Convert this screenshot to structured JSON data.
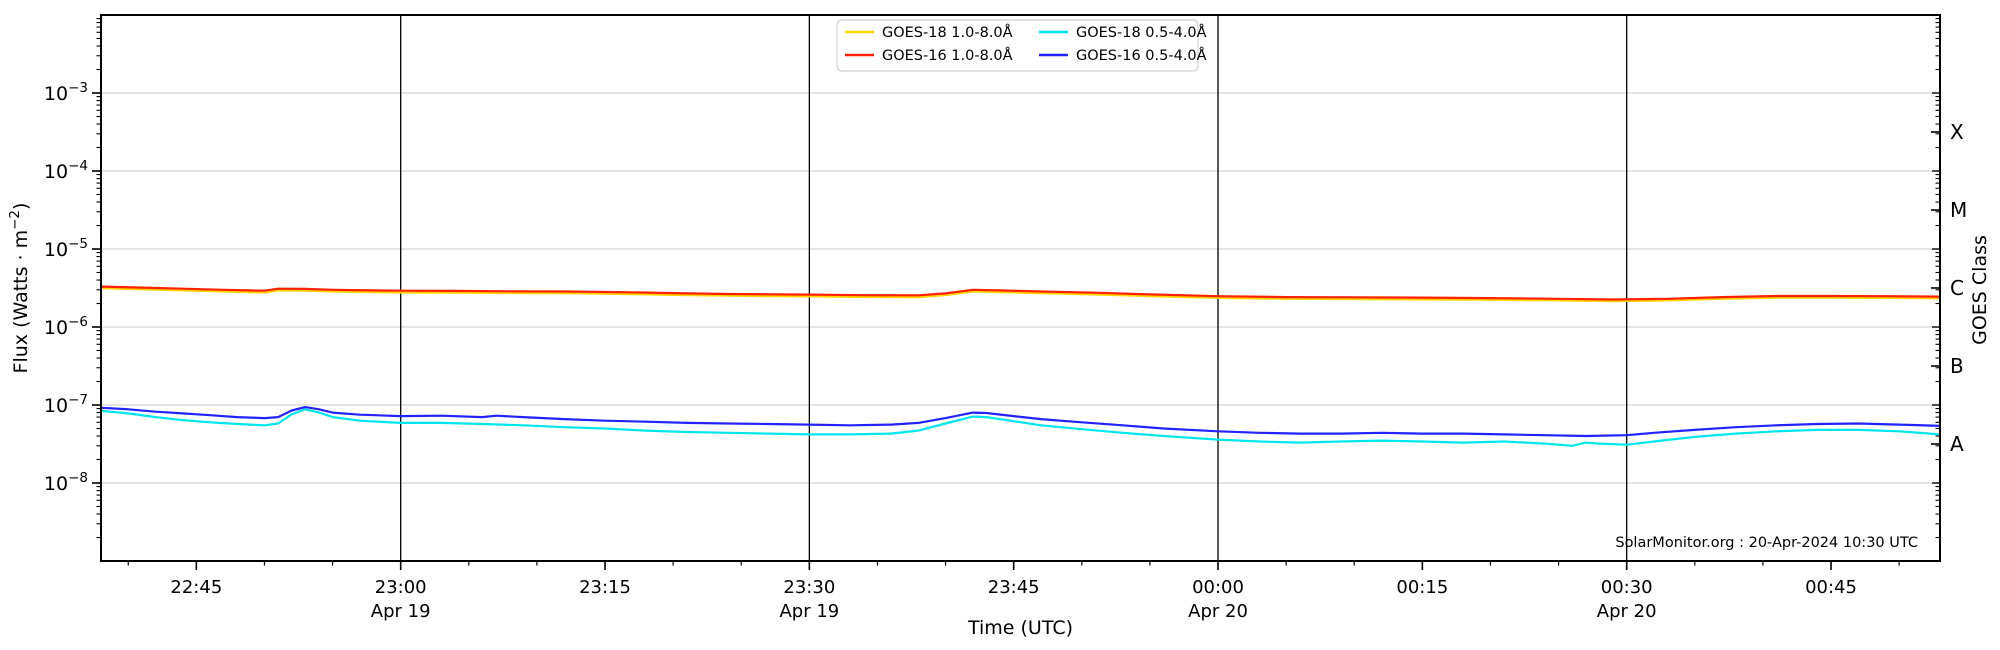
{
  "chart_data": {
    "type": "line",
    "title": "",
    "xlabel": "Time (UTC)",
    "ylabel_left": {
      "pre": "Flux (Watts · m",
      "sup": "−2",
      "post": ")"
    },
    "ylabel_right": "GOES Class",
    "y_axis": {
      "scale": "log",
      "min_exp": -9,
      "max_exp": -2,
      "labeled_exponents": [
        -3,
        -4,
        -5,
        -6,
        -7,
        -8
      ],
      "grid": "horizontal-decade-lines"
    },
    "goes_classes": [
      {
        "label": "X",
        "exp": -3.5
      },
      {
        "label": "M",
        "exp": -4.5
      },
      {
        "label": "C",
        "exp": -5.5
      },
      {
        "label": "B",
        "exp": -6.5
      },
      {
        "label": "A",
        "exp": -7.5
      }
    ],
    "x_axis": {
      "start_utc": "19-Apr-2024 22:38",
      "end_utc": "20-Apr-2024 00:53",
      "range_minutes": 135,
      "minor_tick_step_minutes": 5,
      "minor_tick_offset_minutes": 2,
      "major_ticks": [
        {
          "minute": 7,
          "label": "22:45"
        },
        {
          "minute": 22,
          "label": "23:00",
          "date": "Apr 19",
          "vline": true
        },
        {
          "minute": 37,
          "label": "23:15"
        },
        {
          "minute": 52,
          "label": "23:30",
          "date": "Apr 19",
          "vline": true
        },
        {
          "minute": 67,
          "label": "23:45"
        },
        {
          "minute": 82,
          "label": "00:00",
          "date": "Apr 20",
          "vline": true
        },
        {
          "minute": 97,
          "label": "00:15"
        },
        {
          "minute": 112,
          "label": "00:30",
          "date": "Apr 20",
          "vline": true
        },
        {
          "minute": 127,
          "label": "00:45"
        }
      ]
    },
    "legend": {
      "position": "top-center",
      "columns": 2,
      "entries": [
        {
          "label": "GOES-18 1.0-8.0Å",
          "color": "#ffd400"
        },
        {
          "label": "GOES-16 1.0-8.0Å",
          "color": "#ff2200"
        },
        {
          "label": "GOES-18 0.5-4.0Å",
          "color": "#00e5ee"
        },
        {
          "label": "GOES-16 0.5-4.0Å",
          "color": "#2222ff"
        }
      ]
    },
    "annotation": "SolarMonitor.org : 20-Apr-2024 10:30 UTC",
    "colors": {
      "background": "#ffffff",
      "axes": "#000000",
      "grid": "#c8c8c8",
      "vline": "#000000"
    },
    "series": [
      {
        "name": "GOES-18 1.0-8.0Å",
        "color": "#ffd400",
        "points": [
          [
            0,
            3.14e-06
          ],
          [
            3,
            3.04e-06
          ],
          [
            6,
            2.95e-06
          ],
          [
            9,
            2.85e-06
          ],
          [
            12,
            2.77e-06
          ],
          [
            13,
            2.95e-06
          ],
          [
            15,
            2.93e-06
          ],
          [
            17,
            2.85e-06
          ],
          [
            20,
            2.8e-06
          ],
          [
            22,
            2.77e-06
          ],
          [
            26,
            2.76e-06
          ],
          [
            30,
            2.73e-06
          ],
          [
            34,
            2.71e-06
          ],
          [
            38,
            2.66e-06
          ],
          [
            42,
            2.58e-06
          ],
          [
            46,
            2.52e-06
          ],
          [
            52,
            2.47e-06
          ],
          [
            56,
            2.43e-06
          ],
          [
            60,
            2.42e-06
          ],
          [
            62,
            2.57e-06
          ],
          [
            64,
            2.85e-06
          ],
          [
            66,
            2.8e-06
          ],
          [
            69,
            2.71e-06
          ],
          [
            73,
            2.61e-06
          ],
          [
            77,
            2.49e-06
          ],
          [
            82,
            2.36e-06
          ],
          [
            87,
            2.3e-06
          ],
          [
            92,
            2.28e-06
          ],
          [
            97,
            2.26e-06
          ],
          [
            102,
            2.23e-06
          ],
          [
            107,
            2.19e-06
          ],
          [
            111,
            2.14e-06
          ],
          [
            115,
            2.19e-06
          ],
          [
            119,
            2.3e-06
          ],
          [
            123,
            2.38e-06
          ],
          [
            127,
            2.38e-06
          ],
          [
            131,
            2.36e-06
          ],
          [
            135,
            2.33e-06
          ]
        ]
      },
      {
        "name": "GOES-16 1.0-8.0Å",
        "color": "#ff2200",
        "points": [
          [
            0,
            3.3e-06
          ],
          [
            3,
            3.2e-06
          ],
          [
            6,
            3.1e-06
          ],
          [
            9,
            3e-06
          ],
          [
            12,
            2.92e-06
          ],
          [
            13,
            3.1e-06
          ],
          [
            15,
            3.08e-06
          ],
          [
            17,
            3e-06
          ],
          [
            20,
            2.95e-06
          ],
          [
            22,
            2.92e-06
          ],
          [
            26,
            2.9e-06
          ],
          [
            30,
            2.87e-06
          ],
          [
            34,
            2.85e-06
          ],
          [
            38,
            2.8e-06
          ],
          [
            42,
            2.72e-06
          ],
          [
            46,
            2.65e-06
          ],
          [
            52,
            2.6e-06
          ],
          [
            56,
            2.56e-06
          ],
          [
            60,
            2.55e-06
          ],
          [
            62,
            2.7e-06
          ],
          [
            64,
            3e-06
          ],
          [
            66,
            2.95e-06
          ],
          [
            69,
            2.85e-06
          ],
          [
            73,
            2.75e-06
          ],
          [
            77,
            2.62e-06
          ],
          [
            82,
            2.48e-06
          ],
          [
            87,
            2.42e-06
          ],
          [
            92,
            2.4e-06
          ],
          [
            97,
            2.38e-06
          ],
          [
            102,
            2.35e-06
          ],
          [
            107,
            2.3e-06
          ],
          [
            111,
            2.25e-06
          ],
          [
            115,
            2.3e-06
          ],
          [
            119,
            2.42e-06
          ],
          [
            123,
            2.5e-06
          ],
          [
            127,
            2.5e-06
          ],
          [
            131,
            2.48e-06
          ],
          [
            135,
            2.45e-06
          ]
        ]
      },
      {
        "name": "GOES-18 0.5-4.0Å",
        "color": "#00e5ee",
        "points": [
          [
            0,
            8.4e-08
          ],
          [
            2,
            7.8e-08
          ],
          [
            4,
            7e-08
          ],
          [
            6,
            6.4e-08
          ],
          [
            8,
            6e-08
          ],
          [
            10,
            5.7e-08
          ],
          [
            12,
            5.5e-08
          ],
          [
            13,
            5.8e-08
          ],
          [
            14,
            7.6e-08
          ],
          [
            15,
            8.8e-08
          ],
          [
            16,
            8e-08
          ],
          [
            17,
            7e-08
          ],
          [
            19,
            6.3e-08
          ],
          [
            22,
            5.9e-08
          ],
          [
            25,
            5.9e-08
          ],
          [
            28,
            5.7e-08
          ],
          [
            31,
            5.5e-08
          ],
          [
            34,
            5.2e-08
          ],
          [
            37,
            5e-08
          ],
          [
            40,
            4.7e-08
          ],
          [
            43,
            4.5e-08
          ],
          [
            46,
            4.4e-08
          ],
          [
            49,
            4.3e-08
          ],
          [
            52,
            4.2e-08
          ],
          [
            55,
            4.2e-08
          ],
          [
            58,
            4.3e-08
          ],
          [
            60,
            4.7e-08
          ],
          [
            62,
            5.8e-08
          ],
          [
            64,
            7.1e-08
          ],
          [
            65,
            7e-08
          ],
          [
            67,
            6.2e-08
          ],
          [
            69,
            5.5e-08
          ],
          [
            72,
            4.9e-08
          ],
          [
            75,
            4.4e-08
          ],
          [
            78,
            4e-08
          ],
          [
            82,
            3.6e-08
          ],
          [
            85,
            3.4e-08
          ],
          [
            88,
            3.3e-08
          ],
          [
            91,
            3.4e-08
          ],
          [
            94,
            3.5e-08
          ],
          [
            97,
            3.4e-08
          ],
          [
            100,
            3.3e-08
          ],
          [
            103,
            3.4e-08
          ],
          [
            106,
            3.2e-08
          ],
          [
            108,
            3e-08
          ],
          [
            109,
            3.3e-08
          ],
          [
            110,
            3.2e-08
          ],
          [
            112,
            3.1e-08
          ],
          [
            114,
            3.4e-08
          ],
          [
            117,
            3.9e-08
          ],
          [
            120,
            4.3e-08
          ],
          [
            123,
            4.6e-08
          ],
          [
            126,
            4.8e-08
          ],
          [
            129,
            4.8e-08
          ],
          [
            132,
            4.6e-08
          ],
          [
            135,
            4.2e-08
          ]
        ]
      },
      {
        "name": "GOES-16 0.5-4.0Å",
        "color": "#2222ff",
        "points": [
          [
            0,
            9.2e-08
          ],
          [
            2,
            8.8e-08
          ],
          [
            4,
            8.2e-08
          ],
          [
            6,
            7.8e-08
          ],
          [
            8,
            7.4e-08
          ],
          [
            10,
            7e-08
          ],
          [
            12,
            6.8e-08
          ],
          [
            13,
            7e-08
          ],
          [
            14,
            8.5e-08
          ],
          [
            15,
            9.4e-08
          ],
          [
            16,
            8.8e-08
          ],
          [
            17,
            8e-08
          ],
          [
            19,
            7.5e-08
          ],
          [
            22,
            7.2e-08
          ],
          [
            25,
            7.3e-08
          ],
          [
            28,
            7e-08
          ],
          [
            29,
            7.3e-08
          ],
          [
            31,
            7e-08
          ],
          [
            34,
            6.6e-08
          ],
          [
            37,
            6.3e-08
          ],
          [
            40,
            6.1e-08
          ],
          [
            43,
            5.9e-08
          ],
          [
            46,
            5.8e-08
          ],
          [
            49,
            5.7e-08
          ],
          [
            52,
            5.6e-08
          ],
          [
            55,
            5.5e-08
          ],
          [
            58,
            5.6e-08
          ],
          [
            60,
            5.9e-08
          ],
          [
            62,
            6.8e-08
          ],
          [
            64,
            8e-08
          ],
          [
            65,
            7.9e-08
          ],
          [
            67,
            7.2e-08
          ],
          [
            69,
            6.6e-08
          ],
          [
            72,
            6e-08
          ],
          [
            75,
            5.5e-08
          ],
          [
            78,
            5e-08
          ],
          [
            82,
            4.6e-08
          ],
          [
            85,
            4.4e-08
          ],
          [
            88,
            4.3e-08
          ],
          [
            91,
            4.3e-08
          ],
          [
            94,
            4.4e-08
          ],
          [
            97,
            4.3e-08
          ],
          [
            100,
            4.3e-08
          ],
          [
            103,
            4.2e-08
          ],
          [
            106,
            4.1e-08
          ],
          [
            109,
            4e-08
          ],
          [
            112,
            4.1e-08
          ],
          [
            114,
            4.4e-08
          ],
          [
            117,
            4.8e-08
          ],
          [
            120,
            5.2e-08
          ],
          [
            123,
            5.5e-08
          ],
          [
            126,
            5.7e-08
          ],
          [
            129,
            5.8e-08
          ],
          [
            132,
            5.6e-08
          ],
          [
            135,
            5.4e-08
          ]
        ]
      }
    ]
  }
}
